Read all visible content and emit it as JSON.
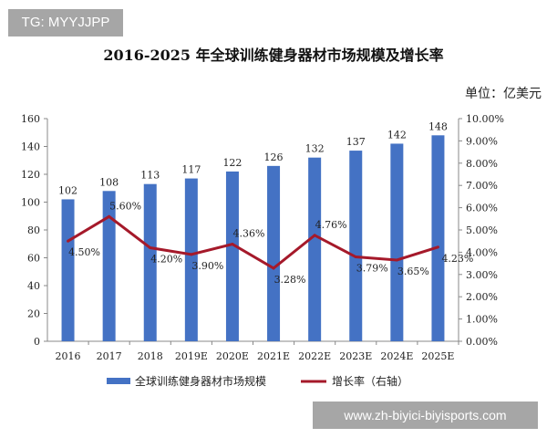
{
  "watermarks": {
    "top_left": "TG: MYYJJPP",
    "bottom_right": "www.zh-biyici-biyisports.com"
  },
  "chart_data": {
    "type": "bar+line",
    "title": "2016-2025 年全球训练健身器材市场规模及增长率",
    "unit": "单位：亿美元",
    "categories": [
      "2016",
      "2017",
      "2018",
      "2019E",
      "2020E",
      "2021E",
      "2022E",
      "2023E",
      "2024E",
      "2025E"
    ],
    "series": [
      {
        "name": "全球训练健身器材市场规模",
        "type": "bar",
        "axis": "left",
        "color": "#4472C4",
        "values": [
          102,
          108,
          113,
          117,
          122,
          126,
          132,
          137,
          142,
          148
        ],
        "labels": [
          "102",
          "108",
          "113",
          "117",
          "122",
          "126",
          "132",
          "137",
          "142",
          "148"
        ]
      },
      {
        "name": "增长率（右轴）",
        "type": "line",
        "axis": "right",
        "color": "#A5192A",
        "values": [
          4.5,
          5.6,
          4.2,
          3.9,
          4.36,
          3.28,
          4.76,
          3.79,
          3.65,
          4.23
        ],
        "labels": [
          "4.50%",
          "5.60%",
          "4.20%",
          "3.90%",
          "4.36%",
          "3.28%",
          "4.76%",
          "3.79%",
          "3.65%",
          "4.23%"
        ]
      }
    ],
    "left_axis": {
      "ylim": [
        0,
        160
      ],
      "ticks": [
        "0",
        "20",
        "40",
        "60",
        "80",
        "100",
        "120",
        "140",
        "160"
      ]
    },
    "right_axis": {
      "ylim": [
        0,
        10
      ],
      "ticks": [
        "0.00%",
        "1.00%",
        "2.00%",
        "3.00%",
        "4.00%",
        "5.00%",
        "6.00%",
        "7.00%",
        "8.00%",
        "9.00%",
        "10.00%"
      ]
    },
    "grid": false,
    "legend": "bottom"
  }
}
